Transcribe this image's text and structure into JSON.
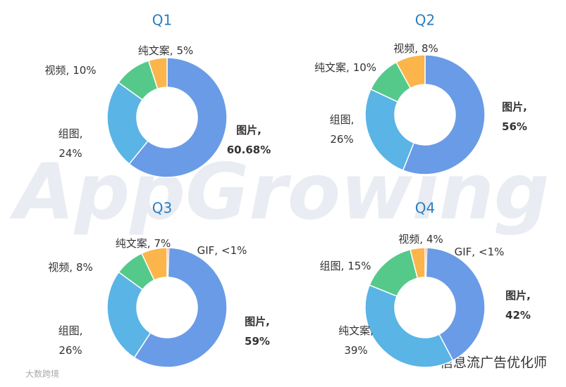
{
  "chart_data": [
    {
      "type": "donut",
      "title": "Q1",
      "categories": [
        "图片,",
        "组图,",
        "视频,",
        "纯文案,"
      ],
      "values": [
        60.68,
        24,
        10,
        5
      ],
      "value_labels": [
        "60.68%",
        "24%",
        "10%",
        "5%"
      ],
      "colors": [
        "#6a9be6",
        "#5ab4e5",
        "#55c98a",
        "#fbb54a"
      ]
    },
    {
      "type": "donut",
      "title": "Q2",
      "categories": [
        "图片,",
        "组图,",
        "纯文案,",
        "视频,"
      ],
      "values": [
        56,
        26,
        10,
        8
      ],
      "value_labels": [
        "56%",
        "26%",
        "10%",
        "8%"
      ],
      "colors": [
        "#6a9be6",
        "#5ab4e5",
        "#55c98a",
        "#fbb54a"
      ]
    },
    {
      "type": "donut",
      "title": "Q3",
      "categories": [
        "GIF,",
        "图片,",
        "组图,",
        "视频,",
        "纯文案,"
      ],
      "values": [
        0.5,
        59,
        26,
        8,
        7
      ],
      "value_labels": [
        "<1%",
        "59%",
        "26%",
        "8%",
        "7%"
      ],
      "colors": [
        "#e96c6c",
        "#6a9be6",
        "#5ab4e5",
        "#55c98a",
        "#fbb54a"
      ]
    },
    {
      "type": "donut",
      "title": "Q4",
      "categories": [
        "GIF,",
        "图片,",
        "纯文案,",
        "组图,",
        "视频,"
      ],
      "values": [
        0.5,
        42,
        39,
        15,
        4
      ],
      "value_labels": [
        "<1%",
        "42%",
        "39%",
        "15%",
        "4%"
      ],
      "colors": [
        "#e96c6c",
        "#6a9be6",
        "#5ab4e5",
        "#55c98a",
        "#fbb54a"
      ]
    }
  ],
  "watermark": "AppGrowing",
  "footer": "信息流广告优化师",
  "corner": "大数跨境"
}
